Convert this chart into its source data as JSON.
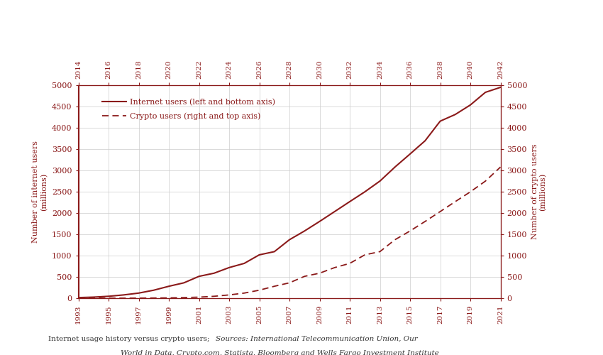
{
  "line_color": "#8B1A1A",
  "bg_color": "#FFFFFF",
  "grid_color": "#CCCCCC",
  "ylim": [
    0,
    5000
  ],
  "yticks": [
    0,
    500,
    1000,
    1500,
    2000,
    2500,
    3000,
    3500,
    4000,
    4500,
    5000
  ],
  "bottom_xticks": [
    1993,
    1995,
    1997,
    1999,
    2001,
    2003,
    2005,
    2007,
    2009,
    2011,
    2013,
    2015,
    2017,
    2019,
    2021
  ],
  "top_xticks": [
    2014,
    2016,
    2018,
    2020,
    2022,
    2024,
    2026,
    2028,
    2030,
    2032,
    2034,
    2036,
    2038,
    2040,
    2042
  ],
  "ylabel_left": "Number of internet users\n(millions)",
  "ylabel_right": "Number of crypto users\n(millions)",
  "legend_internet": "Internet users (left and bottom axis)",
  "legend_crypto": "Crypto users (right and top axis)",
  "internet_years": [
    1993,
    1994,
    1995,
    1996,
    1997,
    1998,
    1999,
    2000,
    2001,
    2002,
    2003,
    2004,
    2005,
    2006,
    2007,
    2008,
    2009,
    2010,
    2011,
    2012,
    2013,
    2014,
    2015,
    2016,
    2017,
    2018,
    2019,
    2020,
    2021
  ],
  "internet_users": [
    14,
    25,
    45,
    77,
    120,
    188,
    280,
    361,
    513,
    587,
    719,
    817,
    1018,
    1093,
    1373,
    1578,
    1802,
    2034,
    2267,
    2497,
    2749,
    3079,
    3385,
    3696,
    4156,
    4313,
    4536,
    4833,
    4950
  ],
  "crypto_bottom_years": [
    1993,
    1994,
    1995,
    1996,
    1997,
    1998,
    1999,
    2000,
    2001,
    2002,
    2003,
    2004,
    2005,
    2006,
    2007,
    2008,
    2009,
    2010,
    2011,
    2012,
    2013,
    2014,
    2015,
    2016,
    2017,
    2018,
    2019,
    2020,
    2021
  ],
  "crypto_users": [
    0,
    0,
    1,
    2,
    3,
    5,
    8,
    14,
    25,
    45,
    77,
    120,
    188,
    280,
    361,
    513,
    587,
    719,
    817,
    1018,
    1093,
    1373,
    1578,
    1802,
    2034,
    2267,
    2497,
    2749,
    3079
  ],
  "caption_normal": "Internet usage history versus crypto users; ",
  "caption_italic": "Sources: International Telecommunication Union, Our",
  "caption_italic2": "World in Data, Crypto.com, Statista, Bloomberg and Wells Fargo Investment Institute"
}
